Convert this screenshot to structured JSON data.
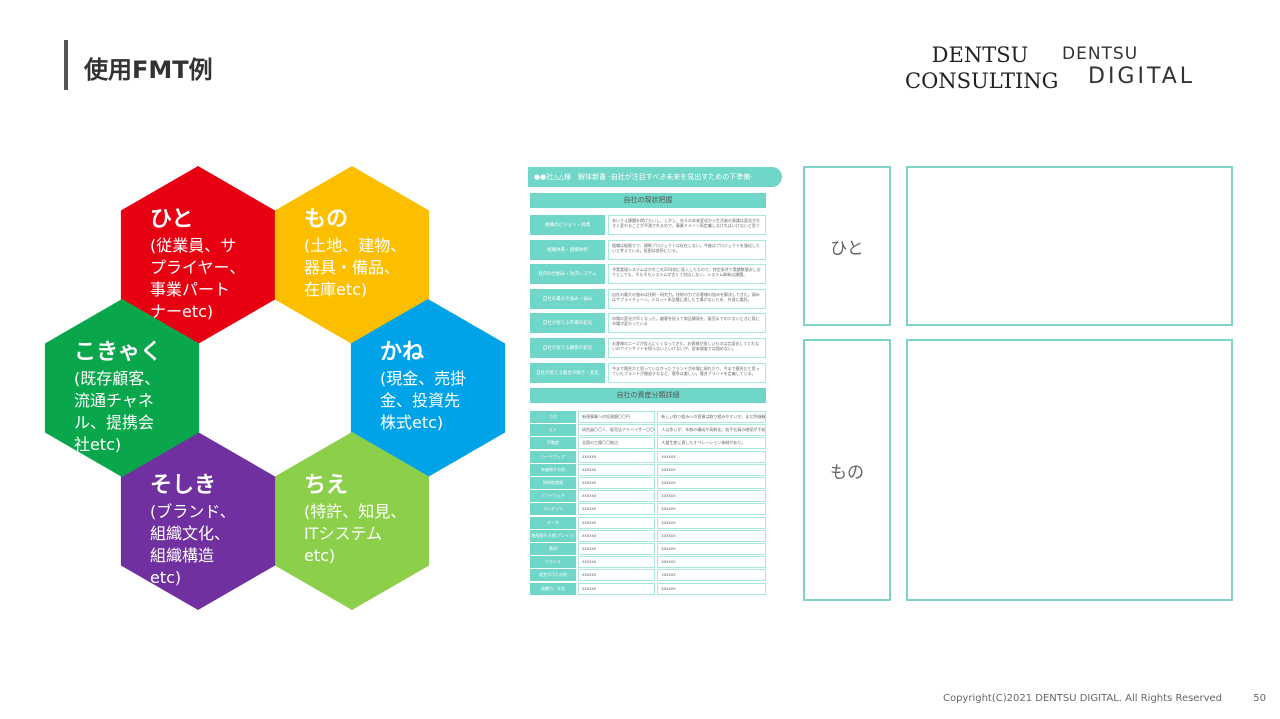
{
  "header": {
    "title": "使用FMT例",
    "logo_consulting": [
      "DENTSU",
      "CONSULTING"
    ],
    "logo_digital": [
      "DENTSU",
      "DIGITAL"
    ]
  },
  "hexagons": [
    {
      "title": "ひと",
      "lines": [
        "(従業員、サ",
        "プライヤー、",
        "事業パート",
        "ナーetc)"
      ],
      "color": "#e60012"
    },
    {
      "title": "もの",
      "lines": [
        "(土地、建物、",
        "器具・備品、",
        "在庫etc)"
      ],
      "color": "#fbbf00"
    },
    {
      "title": "かね",
      "lines": [
        "(現金、売掛",
        "金、投資先",
        "株式etc)"
      ],
      "color": "#00a3e8"
    },
    {
      "title": "ちえ",
      "lines": [
        "(特許、知見、",
        "ITシステム",
        "etc)"
      ],
      "color": "#8ccf4a"
    },
    {
      "title": "そしき",
      "lines": [
        "(ブランド、",
        "組織文化、",
        "組織構造",
        "etc)"
      ],
      "color": "#7030a0"
    },
    {
      "title": "こきゃく",
      "lines": [
        "(既存顧客、",
        "流通チャネ",
        "ル、提携会",
        "社etc)"
      ],
      "color": "#0aa64b"
    }
  ],
  "doc": {
    "heading": "●●社△△様　解体新書 -自社が注目すべき未来を見出すための下準備-",
    "section1": "自社の現状把握",
    "rows1": [
      {
        "label": "組織のビジョン・目標",
        "value": "あいうえ課題を掲げたいし、しかし、先々の未来変化から生活者の意識は変化が大きく変わることが予測されるので、事業ドメイン再定義しなければいけないと思う"
      },
      {
        "label": "組織体系・組織体制",
        "value": "組織は縦割りで、横断プロジェクトは存在しない。今後はプロジェクトを強化したいと考えている。役割は各所にいる。"
      },
      {
        "label": "社内の仕組み・社内システム",
        "value": "予実管理システムはかれこれ20年前に導入したもので、特定条件で実績数値おしおりとしても、そもそもシステムが古くて対応しない。システム刷新は課題。"
      },
      {
        "label": "自社の最大の強み・弱み",
        "value": "自社の最大の強みは技術・研究力。技術の力でお客様の悩みを解決してきた。弱みはサプライチェーン。小ロット多品種に適した工場がないため、外部に委託。"
      },
      {
        "label": "自社が捉える市場の変化",
        "value": "市場の変化が早くなった。顧客を捉えて商品開発を、販売までの少ないときに既に市場が変わっている"
      },
      {
        "label": "自社が捉える顧客の変化",
        "value": "お客様のニーズが見えにくくなってきた。お客様が欲しいものは言語化してくれないのでインサイトを探らないといけないが、従来調査では掴めない。"
      },
      {
        "label": "自社が捉える競合の動き・変化",
        "value": "今まで競合だと思っていなかったブランドが市場に現れたり、今まで競合だと思っていたブランドが撤退するなど、競争は激しい。競合ブランドを定義している。"
      }
    ],
    "section2": "自社の資産分類詳細",
    "rows2": [
      {
        "label": "カネ",
        "v1": "新規事業への投資額〇〇円",
        "v2": "新しい取り組みへの投資は取り組みやすいが、まだ評価軸がない。"
      },
      {
        "label": "ヒト",
        "v1": "研究員〇〇人、販売店アドバイザー〇〇人",
        "v2": "人は多いが、年齢の構成が高齢化。若手社員の確保が不安"
      },
      {
        "label": "不動産",
        "v1": "全国の工場〇〇拠点",
        "v2": "大量生産に適したオペレーション体制があり。"
      },
      {
        "label": "ハードウェア",
        "v1": "xxxxxx",
        "v2": "xxxxxx"
      },
      {
        "label": "有価物その他",
        "v1": "xxxxxx",
        "v2": "xxxxxx"
      },
      {
        "label": "知的財産権",
        "v1": "xxxxxx",
        "v2": "xxxxxx"
      },
      {
        "label": "ソフトウェア",
        "v1": "xxxxxx",
        "v2": "xxxxxx"
      },
      {
        "label": "コンテンツ",
        "v1": "xxxxxx",
        "v2": "xxxxxx"
      },
      {
        "label": "データ",
        "v1": "xxxxxx",
        "v2": "xxxxxx"
      },
      {
        "label": "無形物その他(ブレイン)",
        "v1": "xxxxxx",
        "v2": "xxxxxx"
      },
      {
        "label": "素材",
        "v1": "xxxxxx",
        "v2": "xxxxxx"
      },
      {
        "label": "ブランド",
        "v1": "xxxxxx",
        "v2": "xxxxxx"
      },
      {
        "label": "経営不可その他",
        "v1": "xxxxxx",
        "v2": "xxxxxx"
      },
      {
        "label": "組織力・文化",
        "v1": "xxxxxx",
        "v2": "xxxxxx"
      }
    ]
  },
  "template": {
    "rows": [
      {
        "label": "ひと"
      },
      {
        "label": "もの"
      }
    ],
    "border_color": "#7dd3c8"
  },
  "footer": {
    "copyright": "Copyright(C)2021 DENTSU DIGITAL. All Rights Reserved",
    "page": "50"
  }
}
